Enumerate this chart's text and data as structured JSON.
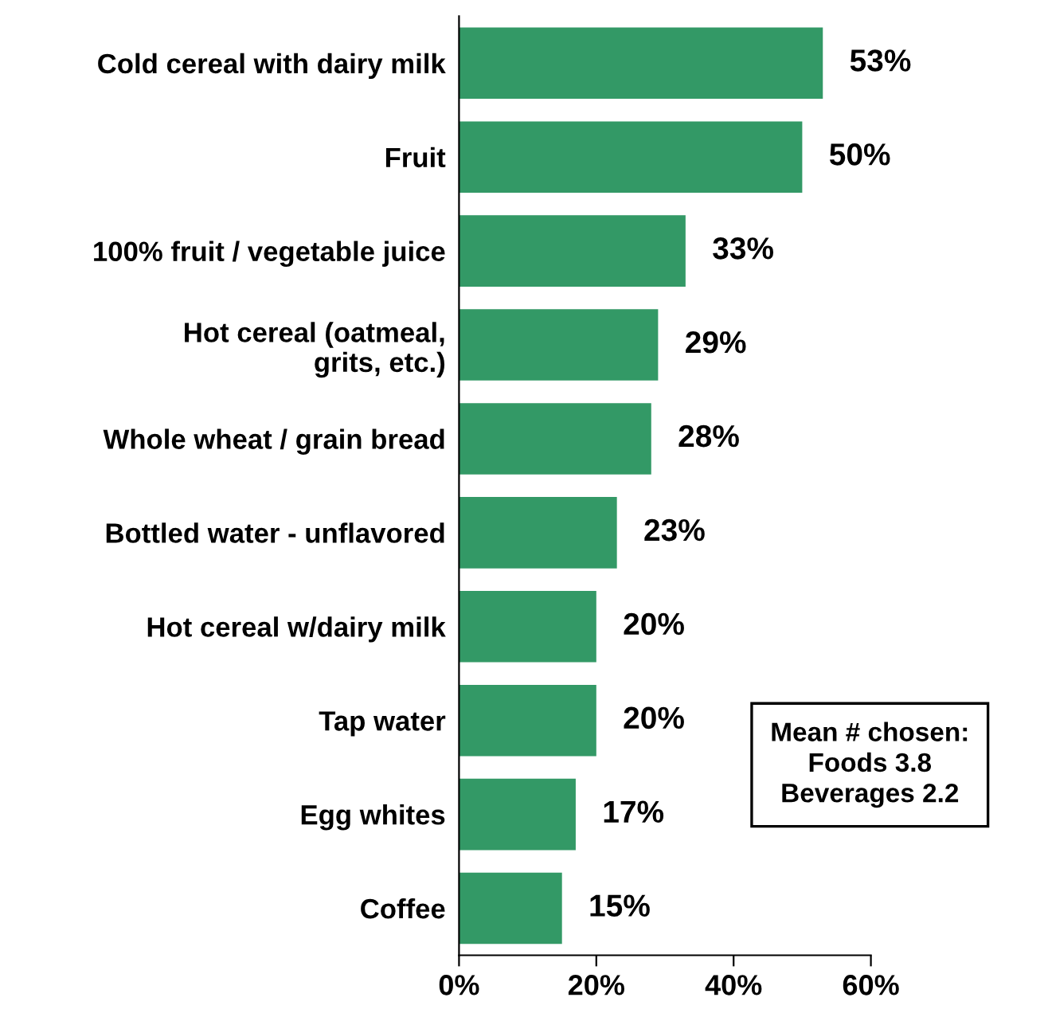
{
  "chart_data": {
    "type": "bar",
    "orientation": "horizontal",
    "categories": [
      "Cold cereal with dairy milk",
      "Fruit",
      "100% fruit / vegetable juice",
      "Hot cereal (oatmeal,\ngrits, etc.)",
      "Whole wheat / grain bread",
      "Bottled water - unflavored",
      "Hot cereal w/dairy milk",
      "Tap water",
      "Egg whites",
      "Coffee"
    ],
    "values": [
      53,
      50,
      33,
      29,
      28,
      23,
      20,
      20,
      17,
      15
    ],
    "value_labels": [
      "53%",
      "50%",
      "33%",
      "29%",
      "28%",
      "23%",
      "20%",
      "20%",
      "17%",
      "15%"
    ],
    "color": "#339966",
    "xlim": [
      0,
      60
    ],
    "xticks": [
      {
        "value": 0,
        "label": "0%"
      },
      {
        "value": 20,
        "label": "20%"
      },
      {
        "value": 40,
        "label": "40%"
      },
      {
        "value": 60,
        "label": "60%"
      }
    ],
    "grid": false,
    "annotations": [
      "Mean # chosen:\nFoods 3.8\nBeverages 2.2"
    ]
  }
}
